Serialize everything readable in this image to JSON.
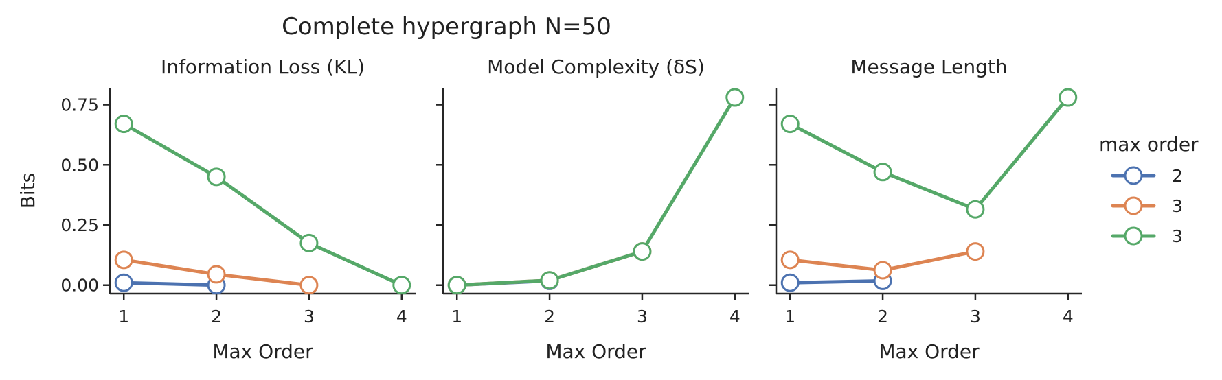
{
  "figure": {
    "suptitle": "Complete hypergraph N=50"
  },
  "legend": {
    "title": "max order",
    "entries": [
      {
        "label": "2",
        "color": "#4c72b0"
      },
      {
        "label": "3",
        "color": "#dd8452"
      },
      {
        "label": "3",
        "color": "#55a868"
      }
    ]
  },
  "chart_data": [
    {
      "type": "line",
      "title": "Information Loss (KL)",
      "xlabel": "Max Order",
      "ylabel": "Bits",
      "x_ticks": [
        "1",
        "2",
        "3",
        "4"
      ],
      "y_ticks": [
        "0.00",
        "0.25",
        "0.50",
        "0.75"
      ],
      "xlim": [
        0.85,
        4.15
      ],
      "ylim": [
        -0.035,
        0.82
      ],
      "series": [
        {
          "name": "2",
          "color": "#4c72b0",
          "x": [
            1,
            2
          ],
          "y": [
            0.01,
            0.0
          ]
        },
        {
          "name": "3",
          "color": "#dd8452",
          "x": [
            1,
            2,
            3
          ],
          "y": [
            0.105,
            0.045,
            0.0
          ]
        },
        {
          "name": "3",
          "color": "#55a868",
          "x": [
            1,
            2,
            3,
            4
          ],
          "y": [
            0.67,
            0.45,
            0.175,
            0.0
          ]
        }
      ]
    },
    {
      "type": "line",
      "title": "Model Complexity (δS)",
      "xlabel": "Max Order",
      "ylabel": "",
      "x_ticks": [
        "1",
        "2",
        "3",
        "4"
      ],
      "y_ticks": [],
      "xlim": [
        0.85,
        4.15
      ],
      "ylim": [
        -0.035,
        0.82
      ],
      "series": [
        {
          "name": "2",
          "color": "#4c72b0",
          "x": [
            1,
            2
          ],
          "y": [
            0.0,
            0.018
          ]
        },
        {
          "name": "3",
          "color": "#dd8452",
          "x": [
            1,
            2,
            3
          ],
          "y": [
            0.0,
            0.02,
            0.14
          ]
        },
        {
          "name": "3",
          "color": "#55a868",
          "x": [
            1,
            2,
            3,
            4
          ],
          "y": [
            0.0,
            0.02,
            0.14,
            0.78
          ]
        }
      ]
    },
    {
      "type": "line",
      "title": "Message Length",
      "xlabel": "Max Order",
      "ylabel": "",
      "x_ticks": [
        "1",
        "2",
        "3",
        "4"
      ],
      "y_ticks": [],
      "xlim": [
        0.85,
        4.15
      ],
      "ylim": [
        -0.035,
        0.82
      ],
      "series": [
        {
          "name": "2",
          "color": "#4c72b0",
          "x": [
            1,
            2
          ],
          "y": [
            0.01,
            0.018
          ]
        },
        {
          "name": "3",
          "color": "#dd8452",
          "x": [
            1,
            2,
            3
          ],
          "y": [
            0.105,
            0.062,
            0.14
          ]
        },
        {
          "name": "3",
          "color": "#55a868",
          "x": [
            1,
            2,
            3,
            4
          ],
          "y": [
            0.67,
            0.47,
            0.315,
            0.78
          ]
        }
      ]
    }
  ]
}
